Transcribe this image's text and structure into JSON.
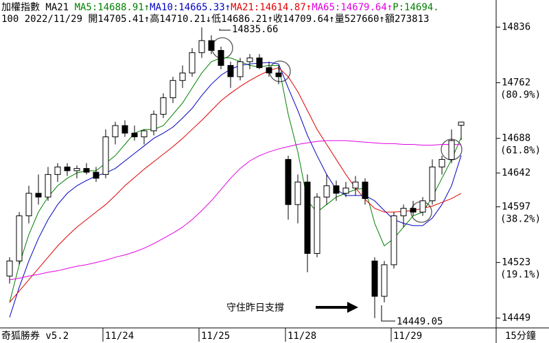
{
  "chart_data": {
    "type": "candlestick",
    "header_title": "加權指數 MA21 ",
    "header_tail": {
      "text": "P:14694.",
      "color": "#008000"
    },
    "header_line2": "100 2022/11/29 開14705.41↑高14710.21↓低14686.21↑收14709.64↑量527660↑額273813",
    "footer_left": "奇狐勝券 v5.2",
    "footer_right": "15分鐘",
    "annotation": "守住昨日支撐",
    "high_label": "14835.66",
    "low_label": "14449.05",
    "categories": [
      null,
      null,
      null,
      null,
      null,
      null,
      null,
      null,
      null,
      null,
      "11/24",
      null,
      null,
      null,
      null,
      null,
      null,
      null,
      null,
      null,
      "11/25",
      null,
      null,
      null,
      null,
      null,
      null,
      null,
      null,
      "11/28",
      null,
      null,
      null,
      null,
      null,
      null,
      null,
      null,
      null,
      null,
      "11/29",
      null,
      null,
      null,
      null,
      null,
      null,
      null
    ],
    "open": [
      14505,
      14525,
      14585,
      14615,
      14610,
      14640,
      14650,
      14645,
      14648,
      14643,
      14640,
      14690,
      14705,
      14695,
      14690,
      14698,
      14720,
      14742,
      14765,
      14775,
      14802,
      14818,
      14805,
      14785,
      14770,
      14790,
      14795,
      14782,
      14775,
      14660,
      14600,
      14630,
      14535,
      14610,
      14625,
      14615,
      14622,
      14630,
      14525,
      14478,
      14520,
      14585,
      14595,
      14590,
      14605,
      14650,
      14660,
      14705.41
    ],
    "high": [
      14530,
      14590,
      14625,
      14640,
      14650,
      14655,
      14655,
      14652,
      14655,
      14650,
      14700,
      14710,
      14712,
      14705,
      14700,
      14725,
      14748,
      14770,
      14785,
      14808,
      14835.66,
      14825,
      14810,
      14790,
      14795,
      14800,
      14800,
      14790,
      14785,
      14665,
      14640,
      14640,
      14615,
      14640,
      14632,
      14630,
      14638,
      14635,
      14530,
      14525,
      14590,
      14600,
      14605,
      14610,
      14660,
      14665,
      14700,
      14710.21
    ],
    "low": [
      14495,
      14520,
      14575,
      14600,
      14605,
      14630,
      14638,
      14635,
      14640,
      14630,
      14635,
      14680,
      14690,
      14685,
      14680,
      14692,
      14715,
      14735,
      14755,
      14770,
      14795,
      14800,
      14780,
      14755,
      14765,
      14780,
      14780,
      14770,
      14760,
      14580,
      14575,
      14510,
      14530,
      14600,
      14605,
      14610,
      14612,
      14600,
      14449.05,
      14470,
      14515,
      14570,
      14585,
      14585,
      14600,
      14640,
      14655,
      14686.21
    ],
    "close": [
      14525,
      14585,
      14615,
      14610,
      14640,
      14650,
      14645,
      14648,
      14643,
      14635,
      14690,
      14705,
      14695,
      14690,
      14698,
      14720,
      14742,
      14765,
      14775,
      14802,
      14818,
      14805,
      14785,
      14770,
      14790,
      14795,
      14782,
      14775,
      14770,
      14600,
      14630,
      14535,
      14610,
      14625,
      14615,
      14622,
      14630,
      14608,
      14478,
      14520,
      14585,
      14595,
      14590,
      14605,
      14650,
      14660,
      14685,
      14709.64
    ],
    "series": [
      {
        "label": "MA5:14688.91↑",
        "color": "#008000",
        "values": [
          14470,
          14520,
          14560,
          14590,
          14610,
          14625,
          14635,
          14642,
          14645,
          14645,
          14655,
          14665,
          14680,
          14695,
          14700,
          14700,
          14705,
          14720,
          14735,
          14755,
          14775,
          14790,
          14795,
          14795,
          14790,
          14785,
          14783,
          14785,
          14785,
          14720,
          14670,
          14605,
          14590,
          14600,
          14610,
          14615,
          14620,
          14622,
          14575,
          14545,
          14555,
          14570,
          14585,
          14590,
          14610,
          14635,
          14660,
          14688.91
        ]
      },
      {
        "label": "MA10:14665.33↑",
        "color": "#0000c0",
        "values": [
          14450,
          14490,
          14525,
          14555,
          14580,
          14600,
          14615,
          14625,
          14632,
          14638,
          14642,
          14648,
          14658,
          14668,
          14678,
          14688,
          14695,
          14703,
          14715,
          14728,
          14745,
          14760,
          14772,
          14780,
          14785,
          14787,
          14788,
          14789,
          14787,
          14755,
          14725,
          14692,
          14665,
          14640,
          14620,
          14612,
          14612,
          14612,
          14605,
          14592,
          14580,
          14575,
          14572,
          14572,
          14582,
          14600,
          14625,
          14665.33
        ]
      },
      {
        "label": "MA21:14614.87↑",
        "color": "#e00000",
        "values": [
          14470,
          14485,
          14500,
          14515,
          14530,
          14545,
          14558,
          14570,
          14580,
          14590,
          14600,
          14612,
          14625,
          14636,
          14647,
          14657,
          14667,
          14677,
          14688,
          14700,
          14712,
          14725,
          14738,
          14748,
          14757,
          14765,
          14772,
          14778,
          14782,
          14770,
          14750,
          14725,
          14700,
          14680,
          14660,
          14640,
          14622,
          14607,
          14595,
          14590,
          14590,
          14591,
          14592,
          14595,
          14598,
          14603,
          14608,
          14614.87
        ]
      },
      {
        "label": "MA65:14679.64↑",
        "color": "#e000e0",
        "values": [
          14500,
          14502,
          14505,
          14507,
          14510,
          14512,
          14515,
          14518,
          14520,
          14523,
          14526,
          14530,
          14533,
          14537,
          14542,
          14548,
          14555,
          14562,
          14570,
          14580,
          14592,
          14605,
          14620,
          14635,
          14648,
          14658,
          14665,
          14670,
          14674,
          14677,
          14680,
          14682,
          14684,
          14685,
          14685,
          14685,
          14684,
          14683,
          14682,
          14681,
          14681,
          14680,
          14680,
          14679,
          14679,
          14680,
          14680,
          14679.64
        ]
      }
    ],
    "ylim": [
      14436,
      14872
    ],
    "yticks": [
      14836,
      14762,
      14688,
      14642,
      14597,
      14523,
      14449
    ],
    "fib_labels": [
      {
        "value": 14762,
        "label": "(80.9%)"
      },
      {
        "value": 14688,
        "label": "(61.8%)"
      },
      {
        "value": 14597,
        "label": "(38.2%)"
      },
      {
        "value": 14523,
        "label": "(19.1%)"
      }
    ]
  }
}
